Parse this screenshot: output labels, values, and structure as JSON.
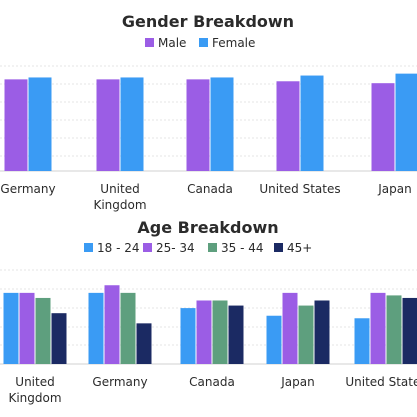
{
  "chart_data": [
    {
      "type": "bar",
      "title": "Gender Breakdown",
      "categories": [
        "Germany",
        "United Kingdom",
        "Canada",
        "United States",
        "Japan"
      ],
      "series": [
        {
          "name": "Male",
          "values": [
            48,
            48,
            48,
            47,
            46
          ]
        },
        {
          "name": "Female",
          "values": [
            49,
            49,
            49,
            50,
            51
          ]
        }
      ],
      "ylim": [
        0,
        55
      ],
      "grid": true,
      "legend": "top",
      "colors": [
        "#9b5de5",
        "#3a9bf4"
      ]
    },
    {
      "type": "bar",
      "title": "Age Breakdown",
      "categories": [
        "United Kingdom",
        "Germany",
        "Canada",
        "Japan",
        "United States"
      ],
      "series": [
        {
          "name": "18 - 24",
          "values": [
            28,
            28,
            22,
            19,
            18
          ]
        },
        {
          "name": "25- 34",
          "values": [
            28,
            31,
            25,
            28,
            28
          ]
        },
        {
          "name": "35 - 44",
          "values": [
            26,
            28,
            25,
            23,
            27
          ]
        },
        {
          "name": "45+",
          "values": [
            20,
            16,
            23,
            25,
            26
          ]
        }
      ],
      "ylim": [
        0,
        37
      ],
      "grid": true,
      "legend": "top",
      "colors": [
        "#3a9bf4",
        "#9b5de5",
        "#5e9f7e",
        "#1b2a63"
      ]
    }
  ]
}
